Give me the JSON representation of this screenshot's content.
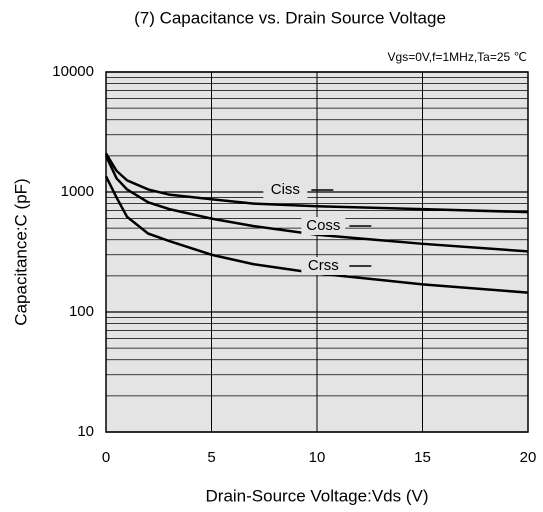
{
  "chart_data": {
    "type": "line",
    "title": "(7) Capacitance vs. Drain Source Voltage",
    "annotation": "Vgs=0V,f=1MHz,Ta=25 ℃",
    "xlabel": "Drain-Source Voltage:Vds (V)",
    "ylabel": "Capacitance:C (pF)",
    "x": [
      0,
      0.5,
      1,
      2,
      3,
      5,
      7,
      10,
      15,
      20
    ],
    "series": [
      {
        "name": "Ciss",
        "color": "#000000",
        "values": [
          2100,
          1500,
          1250,
          1050,
          950,
          870,
          800,
          760,
          720,
          680
        ]
      },
      {
        "name": "Coss",
        "color": "#000000",
        "values": [
          2000,
          1300,
          1050,
          820,
          720,
          600,
          520,
          440,
          370,
          320
        ]
      },
      {
        "name": "Crss",
        "color": "#000000",
        "values": [
          1350,
          900,
          620,
          450,
          390,
          300,
          250,
          210,
          170,
          145
        ]
      }
    ],
    "xlim": [
      0,
      20
    ],
    "xticks": [
      0,
      5,
      10,
      15,
      20
    ],
    "ylim": [
      10,
      10000
    ],
    "yticks": [
      10,
      100,
      1000,
      10000
    ],
    "log_y": true,
    "grid": true
  }
}
